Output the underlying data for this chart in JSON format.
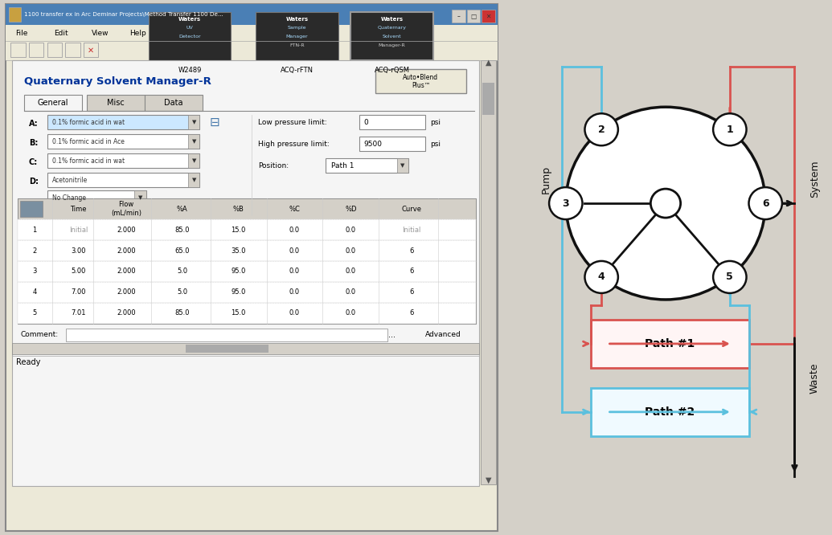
{
  "title_bar": "1100 transfer ex in Arc Deminar Projects\\Method Transfer 1100 De...",
  "menu_items": [
    "File",
    "Edit",
    "View",
    "Help"
  ],
  "instruments": [
    {
      "name": "Waters\nUV\nDetector",
      "label": "W2489"
    },
    {
      "name": "Waters\nSample\nManager\nFTN-R",
      "label": "ACQ-rFTN"
    },
    {
      "name": "Waters\nQuaternary\nSolvent\nManager-R",
      "label": "ACQ-rQSM",
      "selected": true
    }
  ],
  "section_title": "Quaternary Solvent Manager-R",
  "button_text": "Auto•Blend\nPlus™",
  "tabs": [
    "General",
    "Misc",
    "Data"
  ],
  "solvent_labels": [
    "A:",
    "B:",
    "C:",
    "D:"
  ],
  "solvent_values": [
    "0.1% formic acid in wat",
    "0.1% formic acid in Ace",
    "0.1% formic acid in wat",
    "Acetonitrile"
  ],
  "no_change": "No Change",
  "low_pressure_label": "Low pressure limit:",
  "low_pressure_value": "0",
  "low_pressure_unit": "psi",
  "high_pressure_label": "High pressure limit:",
  "high_pressure_value": "9500",
  "high_pressure_unit": "psi",
  "position_label": "Position:",
  "position_value": "Path 1",
  "table_headers": [
    "",
    "Time",
    "Flow\n(mL/min)",
    "%A",
    "%B",
    "%C",
    "%D",
    "Curve"
  ],
  "table_rows": [
    [
      1,
      "Initial",
      "2.000",
      "85.0",
      "15.0",
      "0.0",
      "0.0",
      "Initial"
    ],
    [
      2,
      "3.00",
      "2.000",
      "65.0",
      "35.0",
      "0.0",
      "0.0",
      "6"
    ],
    [
      3,
      "5.00",
      "2.000",
      "5.0",
      "95.0",
      "0.0",
      "0.0",
      "6"
    ],
    [
      4,
      "7.00",
      "2.000",
      "5.0",
      "95.0",
      "0.0",
      "0.0",
      "6"
    ],
    [
      5,
      "7.01",
      "2.000",
      "85.0",
      "15.0",
      "0.0",
      "0.0",
      "6"
    ]
  ],
  "comment_label": "Comment:",
  "advanced_label": "Advanced",
  "ready_label": "Ready",
  "path1_color": "#d9534f",
  "path2_color": "#5bc0de",
  "pump_label": "Pump",
  "system_label": "System",
  "waste_label": "Waste",
  "path1_label": "Path #1",
  "path2_label": "Path #2"
}
